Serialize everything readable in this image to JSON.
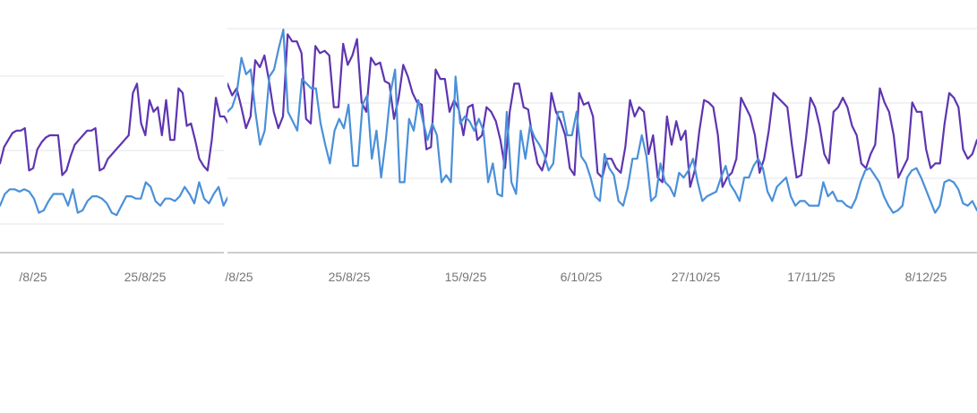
{
  "chart_data": [
    {
      "type": "line",
      "grid": true,
      "legend": "none",
      "x_tick_labels": [
        "/8/25",
        "25/8/25"
      ],
      "ylim": [
        0,
        100
      ],
      "series": [
        {
          "color": "#5e35b1",
          "values": [
            38,
            45,
            48,
            51,
            52,
            52,
            53,
            35,
            36,
            44,
            47,
            49,
            50,
            50,
            50,
            33,
            35,
            41,
            46,
            48,
            50,
            52,
            52,
            53,
            35,
            36,
            40,
            42,
            44,
            46,
            48,
            50,
            68,
            72,
            55,
            50,
            65,
            60,
            62,
            50,
            65,
            48,
            48,
            70,
            68,
            54,
            55,
            48,
            40,
            37,
            35,
            48,
            66,
            58,
            58,
            55
          ]
        },
        {
          "color": "#4a90d9",
          "values": [
            20,
            25,
            27,
            27,
            26,
            27,
            26,
            23,
            17,
            18,
            22,
            25,
            25,
            25,
            20,
            27,
            17,
            18,
            22,
            24,
            24,
            23,
            21,
            17,
            16,
            20,
            24,
            24,
            23,
            23,
            30,
            28,
            22,
            20,
            23,
            23,
            22,
            24,
            28,
            25,
            21,
            30,
            23,
            21,
            25,
            28,
            20,
            24
          ]
        }
      ]
    },
    {
      "type": "line",
      "grid": true,
      "legend": "none",
      "x_tick_labels": [
        "/8/25",
        "25/8/25",
        "15/9/25",
        "6/10/25",
        "27/10/25",
        "17/11/25",
        "8/12/25"
      ],
      "ylim": [
        0,
        100
      ],
      "series": [
        {
          "color": "#5e35b1",
          "values": [
            72,
            67,
            70,
            62,
            53,
            58,
            82,
            79,
            84,
            73,
            60,
            53,
            58,
            93,
            90,
            90,
            85,
            57,
            55,
            88,
            85,
            86,
            84,
            62,
            62,
            89,
            80,
            84,
            91,
            64,
            60,
            83,
            80,
            81,
            73,
            72,
            57,
            66,
            80,
            75,
            68,
            64,
            63,
            44,
            45,
            78,
            74,
            74,
            60,
            65,
            61,
            50,
            62,
            63,
            48,
            50,
            62,
            60,
            56,
            48,
            36,
            60,
            72,
            72,
            62,
            61,
            48,
            38,
            35,
            42,
            68,
            60,
            56,
            50,
            36,
            33,
            68,
            63,
            64,
            58,
            34,
            32,
            40,
            40,
            36,
            34,
            45,
            65,
            58,
            62,
            60,
            42,
            50,
            32,
            30,
            58,
            46,
            56,
            48,
            52,
            28,
            35,
            52,
            65,
            64,
            62,
            50,
            28,
            32,
            34,
            40,
            66,
            62,
            58,
            50,
            34,
            40,
            52,
            68,
            66,
            64,
            62,
            46,
            32,
            33,
            48,
            66,
            62,
            54,
            42,
            38,
            60,
            62,
            66,
            62,
            54,
            50,
            38,
            36,
            42,
            46,
            70,
            64,
            60,
            50,
            32,
            36,
            40,
            64,
            60,
            60,
            44,
            36,
            38,
            38,
            55,
            68,
            66,
            62,
            44,
            40,
            42,
            48
          ]
        },
        {
          "color": "#4a90d9",
          "values": [
            60,
            62,
            68,
            83,
            76,
            78,
            60,
            46,
            52,
            75,
            78,
            87,
            95,
            60,
            56,
            52,
            74,
            72,
            70,
            70,
            55,
            46,
            38,
            52,
            57,
            53,
            63,
            37,
            37,
            63,
            67,
            40,
            52,
            32,
            48,
            68,
            78,
            30,
            30,
            57,
            52,
            65,
            56,
            48,
            55,
            50,
            30,
            33,
            30,
            75,
            55,
            58,
            56,
            52,
            57,
            52,
            30,
            38,
            25,
            24,
            60,
            30,
            25,
            52,
            40,
            54,
            49,
            46,
            42,
            35,
            38,
            60,
            60,
            50,
            50,
            60,
            41,
            38,
            32,
            24,
            22,
            42,
            36,
            33,
            22,
            20,
            28,
            40,
            40,
            50,
            41,
            22,
            24,
            38,
            30,
            28,
            24,
            34,
            32,
            35,
            40,
            30,
            22,
            24,
            25,
            26,
            32,
            37,
            29,
            26,
            22,
            32,
            32,
            37,
            40,
            36,
            26,
            22,
            28,
            30,
            32,
            24,
            20,
            22,
            22,
            20,
            20,
            20,
            30,
            24,
            26,
            22,
            22,
            20,
            19,
            23,
            30,
            35,
            36,
            33,
            30,
            24,
            20,
            17,
            18,
            20,
            32,
            35,
            36,
            32,
            27,
            22,
            17,
            20,
            30,
            31,
            30,
            27,
            21,
            20,
            22,
            18
          ]
        }
      ]
    }
  ]
}
